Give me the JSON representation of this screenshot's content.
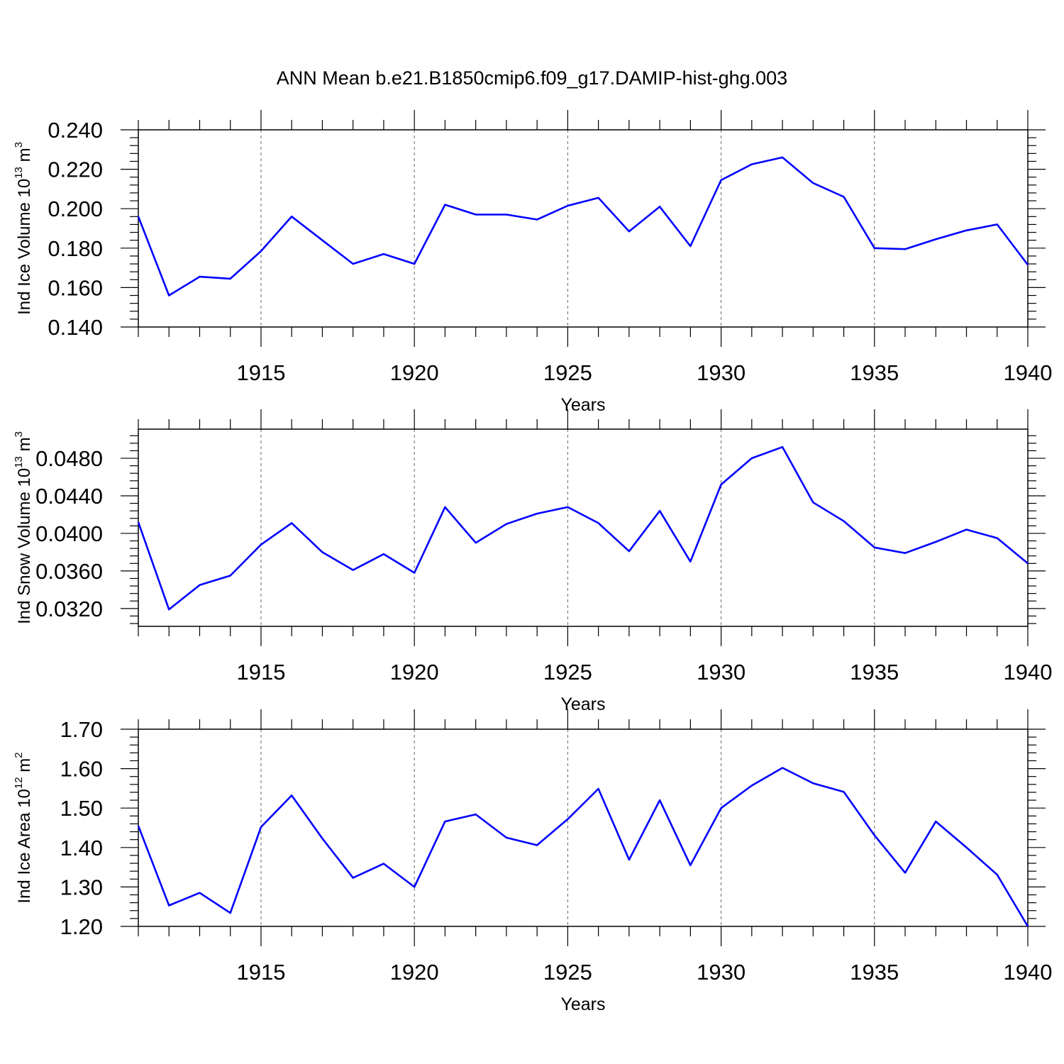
{
  "title": "ANN Mean b.e21.B1850cmip6.f09_g17.DAMIP-hist-ghg.003",
  "chart_data": [
    {
      "type": "line",
      "ylabel": {
        "text": "Ind Ice Volume 10",
        "exp": "13",
        "unit": " m",
        "unit_exp": "3"
      },
      "xlabel": "Years",
      "xlim": [
        1911,
        1940
      ],
      "ylim": [
        0.14,
        0.24
      ],
      "x_ticks": [
        "1915",
        "1920",
        "1925",
        "1930",
        "1935",
        "1940"
      ],
      "y_ticks": [
        "0.240",
        "0.220",
        "0.200",
        "0.180",
        "0.160",
        "0.140"
      ],
      "line_color": "#0000ff",
      "series": [
        {
          "name": "Ind Ice Volume",
          "x": [
            1911,
            1912,
            1913,
            1914,
            1915,
            1916,
            1917,
            1918,
            1919,
            1920,
            1921,
            1922,
            1923,
            1924,
            1925,
            1926,
            1927,
            1928,
            1929,
            1930,
            1931,
            1932,
            1933,
            1934,
            1935,
            1936,
            1937,
            1938,
            1939,
            1940
          ],
          "values": [
            0.196,
            0.156,
            0.1655,
            0.1645,
            0.1785,
            0.196,
            0.184,
            0.172,
            0.177,
            0.172,
            0.202,
            0.197,
            0.197,
            0.1945,
            0.2015,
            0.2055,
            0.1885,
            0.201,
            0.181,
            0.2145,
            0.2225,
            0.226,
            0.213,
            0.206,
            0.18,
            0.1795,
            0.1845,
            0.189,
            0.192,
            0.1715
          ]
        }
      ]
    },
    {
      "type": "line",
      "ylabel": {
        "text": "Ind Snow Volume 10",
        "exp": "13",
        "unit": " m",
        "unit_exp": "3"
      },
      "xlabel": "Years",
      "xlim": [
        1911,
        1940
      ],
      "ylim": [
        0.0301,
        0.0511
      ],
      "x_ticks": [
        "1915",
        "1920",
        "1925",
        "1930",
        "1935",
        "1940"
      ],
      "y_ticks": [
        "0.0480",
        "0.0440",
        "0.0400",
        "0.0360",
        "0.0320"
      ],
      "y_tick_values": [
        0.048,
        0.044,
        0.04,
        0.036,
        0.032
      ],
      "line_color": "#0000ff",
      "series": [
        {
          "name": "Ind Snow Volume",
          "x": [
            1911,
            1912,
            1913,
            1914,
            1915,
            1916,
            1917,
            1918,
            1919,
            1920,
            1921,
            1922,
            1923,
            1924,
            1925,
            1926,
            1927,
            1928,
            1929,
            1930,
            1931,
            1932,
            1933,
            1934,
            1935,
            1936,
            1937,
            1938,
            1939,
            1940
          ],
          "values": [
            0.0412,
            0.0319,
            0.0345,
            0.0355,
            0.0388,
            0.0411,
            0.038,
            0.0361,
            0.0378,
            0.0358,
            0.0428,
            0.039,
            0.041,
            0.0421,
            0.0428,
            0.0411,
            0.0381,
            0.0424,
            0.037,
            0.0452,
            0.048,
            0.0492,
            0.0433,
            0.0413,
            0.0385,
            0.0379,
            0.0391,
            0.0404,
            0.0395,
            0.0368
          ]
        }
      ]
    },
    {
      "type": "line",
      "ylabel": {
        "text": "Ind Ice Area 10",
        "exp": "12",
        "unit": " m",
        "unit_exp": "2"
      },
      "xlabel": "Years",
      "xlim": [
        1911,
        1940
      ],
      "ylim": [
        1.2,
        1.7
      ],
      "x_ticks": [
        "1915",
        "1920",
        "1925",
        "1930",
        "1935",
        "1940"
      ],
      "y_ticks": [
        "1.70",
        "1.60",
        "1.50",
        "1.40",
        "1.30",
        "1.20"
      ],
      "line_color": "#0000ff",
      "series": [
        {
          "name": "Ind Ice Area",
          "x": [
            1911,
            1912,
            1913,
            1914,
            1915,
            1916,
            1917,
            1918,
            1919,
            1920,
            1921,
            1922,
            1923,
            1924,
            1925,
            1926,
            1927,
            1928,
            1929,
            1930,
            1931,
            1932,
            1933,
            1934,
            1935,
            1936,
            1937,
            1938,
            1939,
            1940
          ],
          "values": [
            1.455,
            1.253,
            1.285,
            1.234,
            1.452,
            1.532,
            1.423,
            1.323,
            1.359,
            1.3,
            1.466,
            1.484,
            1.425,
            1.406,
            1.472,
            1.549,
            1.369,
            1.52,
            1.355,
            1.5,
            1.557,
            1.602,
            1.563,
            1.541,
            1.431,
            1.336,
            1.466,
            1.4,
            1.331,
            1.2
          ]
        }
      ]
    }
  ]
}
